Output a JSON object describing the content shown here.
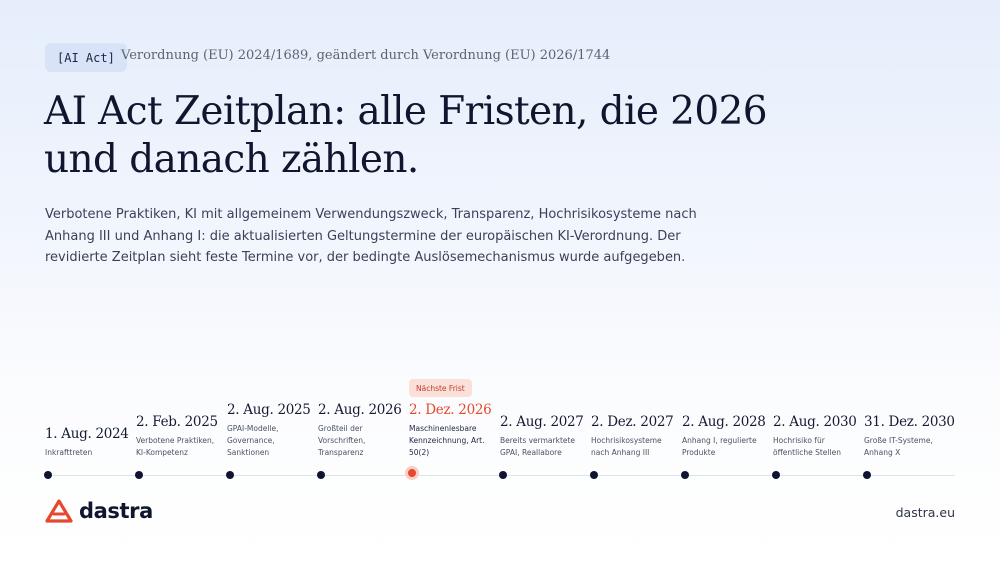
{
  "header": {
    "tag": "[AI Act]",
    "regulation": "Verordnung (EU) 2024/1689, geändert durch Verordnung (EU) 2026/1744"
  },
  "title": "AI Act Zeitplan: alle Fristen, die 2026 und danach zählen.",
  "subtitle": "Verbotene Praktiken, KI mit allgemeinem Verwendungszweck, Transparenz, Hochrisikosysteme nach Anhang III und Anhang I: die aktualisierten Geltungstermine der europäischen KI-Verordnung. Der revidierte Zeitplan sieht feste Termine vor, der bedingte Auslösemechanismus wurde aufgegeben.",
  "next_deadline_label": "Nächste Frist",
  "milestones": [
    {
      "date": "1. Aug. 2024",
      "description": "Inkrafttreten"
    },
    {
      "date": "2. Feb. 2025",
      "description": "Verbotene Praktiken, KI-Kompetenz"
    },
    {
      "date": "2. Aug. 2025",
      "description": "GPAI-Modelle, Governance, Sanktionen"
    },
    {
      "date": "2. Aug. 2026",
      "description": "Großteil der Vorschriften, Transparenz"
    },
    {
      "date": "2. Dez. 2026",
      "description": "Maschinenlesbare Kennzeichnung, Art. 50(2)"
    },
    {
      "date": "2. Aug. 2027",
      "description": "Bereits vermarktete GPAI, Reallabore"
    },
    {
      "date": "2. Dez. 2027",
      "description": "Hochrisikosysteme nach Anhang III"
    },
    {
      "date": "2. Aug. 2028",
      "description": "Anhang I, regulierte Produkte"
    },
    {
      "date": "2. Aug. 2030",
      "description": "Hochrisiko für öffentliche Stellen"
    },
    {
      "date": "31. Dez. 2030",
      "description": "Große IT-Systeme, Anhang X"
    }
  ],
  "highlight_index": 4,
  "colors": {
    "accent": "#e5482c",
    "ink": "#10162e"
  },
  "footer": {
    "brand": "dastra",
    "website": "dastra.eu"
  }
}
